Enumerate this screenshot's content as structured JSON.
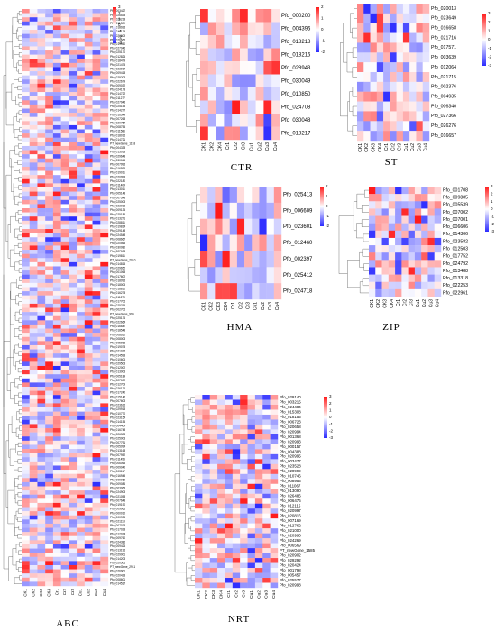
{
  "figure": {
    "colors": {
      "low": "#2b2bff",
      "mid": "#ffffff",
      "high": "#ff1a1a"
    }
  },
  "chart_data": [
    {
      "type": "heatmap",
      "title": "ABC",
      "columns": [
        "CK1",
        "CK2",
        "CK3",
        "CK4",
        "Cr1",
        "Cr2",
        "Cr3",
        "Cu1",
        "Cu2",
        "Cu3",
        "Cu4"
      ],
      "rows": [
        "Pfo_003427",
        "Pfo_026538",
        "Pfo_029218",
        "Pfo_011020",
        "Pfo_018925",
        "Pfo_016179",
        "Pfo_026609",
        "Pfo_026665",
        "Pfo_019950",
        "Pfo_027046",
        "Pfo_025170",
        "Pfo_012824",
        "Pfo_018479",
        "Pfo_021475",
        "Pfo_023917",
        "Pfo_009418",
        "Pfo_029208",
        "Pfo_022679",
        "Pfo_009032",
        "Pfo_024178",
        "Pfo_014722",
        "Pfo_011277",
        "Pfo_027945",
        "Pfo_025155",
        "Pfo_014277",
        "Pfo_016349",
        "Pfo_007268",
        "Pfo_020754",
        "Pfo_008754",
        "Pfo_011586",
        "Pfo_018016",
        "Pfo_014721",
        "PT_newGene_1153",
        "Pfo_004338",
        "Pfo_013038",
        "Pfo_029648",
        "Pfo_030045",
        "Pfo_007995",
        "Pfo_016594",
        "Pfo_019011",
        "Pfo_020998",
        "Pfo_022180",
        "Pfo_011404",
        "Pfo_013011",
        "Pfo_005148",
        "Pfo_007343",
        "Pfo_025008",
        "Pfo_023038",
        "Pfo_009134",
        "Pfo_025184",
        "Pfo_013271",
        "Pfo_028811",
        "Pfo_019814",
        "Pfo_029148",
        "Pfo_024548",
        "Pfo_008667",
        "Pfo_020565",
        "Pfo_030080",
        "Pfo_027008",
        "Pfo_019811",
        "PT_newGene_2010",
        "Pfo_014814",
        "Pfo_029652",
        "Pfo_001063",
        "Pfo_017602",
        "Pfo_018095",
        "Pfo_018005",
        "Pfo_018812",
        "Pfo_016278",
        "Pfo_011279",
        "Pfo_017706",
        "Pfo_025765",
        "Pfo_002706",
        "PT_newGene_999",
        "Pfo_025176",
        "Pfo_022664",
        "Pfo_016647",
        "Pfo_018548",
        "Pfo_008630",
        "Pfo_008003",
        "Pfo_005988",
        "Pfo_019078",
        "Pfo_021077",
        "Pfo_014593",
        "Pfo_010604",
        "Pfo_029503",
        "Pfo_012002",
        "Pfo_013003",
        "Pfo_005189",
        "Pfo_027002",
        "Pfo_012709",
        "Pfo_026176",
        "Pfo_017240",
        "Pfo_015146",
        "Pfo_007608",
        "Pfo_023616",
        "Pfo_029913",
        "Pfo_010770",
        "Pfo_023154",
        "Pfo_014154",
        "Pfo_004404",
        "Pfo_016748",
        "Pfo_026303",
        "Pfo_025003",
        "Pfo_007791",
        "Pfo_005094",
        "Pfo_013168",
        "Pfo_007952",
        "Pfo_011455",
        "Pfo_006065",
        "Pfo_009040",
        "Pfo_003117",
        "Pfo_016945",
        "Pfo_009069",
        "Pfo_009086",
        "Pfo_003063",
        "Pfo_024908",
        "Pfo_021058",
        "Pfo_007643",
        "Pfo_019190",
        "Pfo_009965",
        "Pfo_000010",
        "Pfo_000935",
        "Pfo_021113",
        "Pfo_007073",
        "Pfo_017023",
        "Pfo_012024",
        "Pfo_009760",
        "Pfo_024386",
        "Pfo_009424",
        "Pfo_013196",
        "Pfo_029001",
        "Pfo_014208",
        "Pfo_020501",
        "PT_newGene_2911",
        "Pfo_026901",
        "Pfo_020423",
        "Pfo_008601",
        "Pfo_014537"
      ],
      "scale": {
        "min": -3,
        "max": 3,
        "ticks": [
          3,
          2,
          1,
          0,
          -1,
          -2,
          -3
        ]
      }
    },
    {
      "type": "heatmap",
      "title": "CTR",
      "columns": [
        "CK1",
        "CK2",
        "CK4",
        "Cr1",
        "Cr2",
        "Cr3",
        "Cu1",
        "Cu2",
        "Cu3",
        "Cu4"
      ],
      "rows": [
        "Pfo_000200",
        "Pfo_004396",
        "Pfo_018218",
        "Pfo_018216",
        "Pfo_028943",
        "Pfo_030049",
        "Pfo_010850",
        "Pfo_024708",
        "Pfo_030048",
        "Pfo_018217"
      ],
      "scale": {
        "min": -2,
        "max": 2,
        "ticks": [
          2,
          1,
          0,
          -1,
          -2
        ]
      }
    },
    {
      "type": "heatmap",
      "title": "ST",
      "columns": [
        "CK1",
        "CK2",
        "CK3",
        "CK4",
        "Cr1",
        "Cr2",
        "Cr3",
        "Cu1",
        "Cu2",
        "Cu3",
        "Cu4"
      ],
      "rows": [
        "Pfo_020013",
        "Pfo_023649",
        "Pfo_016658",
        "Pfo_021716",
        "Pfo_017571",
        "Pfo_003639",
        "Pfo_012064",
        "Pfo_021715",
        "Pfo_002376",
        "Pfo_004935",
        "Pfo_006340",
        "Pfo_027366",
        "Pfo_026276",
        "Pfo_016657"
      ],
      "scale": {
        "min": -3,
        "max": 3,
        "ticks": [
          3,
          2,
          1,
          0,
          -1,
          -2,
          -3
        ]
      }
    },
    {
      "type": "heatmap",
      "title": "HMA",
      "columns": [
        "CK1",
        "CK2",
        "CK3",
        "CK4",
        "Cr1",
        "Cr2",
        "Cr3",
        "Cu1",
        "Cu2",
        "Cu3",
        "Cu4"
      ],
      "rows": [
        "Pfo_025413",
        "Pfo_006609",
        "Pfo_023601",
        "Pfo_012460",
        "Pfo_002397",
        "Pfo_025412",
        "Pfo_024718"
      ],
      "scale": {
        "min": -2,
        "max": 2,
        "ticks": [
          2,
          1,
          0,
          -1,
          -2
        ]
      }
    },
    {
      "type": "heatmap",
      "title": "ZIP",
      "columns": [
        "CK1",
        "CK2",
        "CK3",
        "CK4",
        "Cr1",
        "Cr2",
        "Cr3",
        "Cu1",
        "Cu2",
        "Cu3",
        "Cu4"
      ],
      "rows": [
        "Pfo_001708",
        "Pfo_009885",
        "Pfo_005539",
        "Pfo_007002",
        "Pfo_007001",
        "Pfo_006606",
        "Pfo_014306",
        "Pfo_023582",
        "Pfo_012503",
        "Pfo_017752",
        "Pfo_024792",
        "Pfo_013488",
        "Pfo_013318",
        "Pfo_022253",
        "Pfo_022961"
      ],
      "scale": {
        "min": -3,
        "max": 3,
        "ticks": [
          3,
          2,
          1,
          0,
          -1,
          -2,
          -3
        ]
      }
    },
    {
      "type": "heatmap",
      "title": "NRT",
      "columns": [
        "CK1",
        "CK2",
        "CK3",
        "CK4",
        "Cr1",
        "Cr2",
        "Cr3",
        "Cu1",
        "Cu2",
        "Cu3",
        "Cu4"
      ],
      "rows": [
        "Pfo_029140",
        "Pfo_003215",
        "Pfo_024484",
        "Pfo_015308",
        "Pfo_018155",
        "Pfo_006723",
        "Pfo_020658",
        "Pfo_020994",
        "Pfo_001368",
        "Pfo_020993",
        "Pfo_000157",
        "Pfo_004388",
        "Pfo_020995",
        "Pfo_003477",
        "Pfo_023528",
        "Pfo_020999",
        "Pfo_010746",
        "Pfo_008953",
        "Pfo_011067",
        "Pfo_013090",
        "Pfo_026486",
        "Pfo_006476",
        "Pfo_012115",
        "Pfo_020997",
        "Pfo_020816",
        "Pfo_007169",
        "Pfo_012762",
        "Pfo_021000",
        "Pfo_020996",
        "Pfo_024269",
        "Pfo_006569",
        "PT_newGene_1585",
        "Pfo_020902",
        "Pfo_029292",
        "Pfo_020424",
        "Pfo_001798",
        "Pfo_005457",
        "Pfo_025577",
        "Pfo_020998"
      ],
      "scale": {
        "min": -3,
        "max": 3,
        "ticks": [
          3,
          2,
          1,
          0,
          -1,
          -2,
          -3
        ]
      }
    }
  ]
}
